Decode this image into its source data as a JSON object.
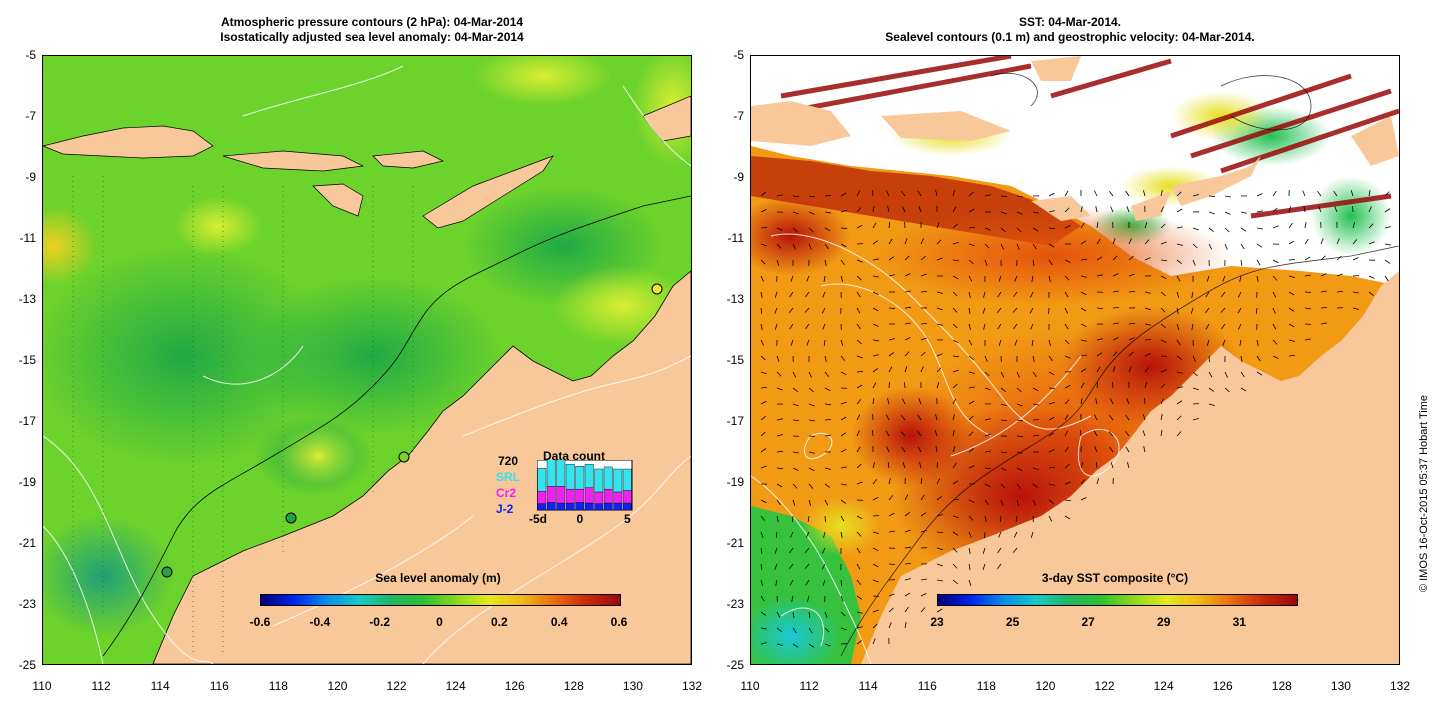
{
  "left_panel": {
    "title_line1": "Atmospheric pressure contours (2 hPa): 04-Mar-2014",
    "title_line2": "Isostatically adjusted sea level anomaly: 04-Mar-2014",
    "colorbar": {
      "title": "Sea level anomaly (m)",
      "ticks": [
        "-0.6",
        "-0.4",
        "-0.2",
        "0",
        "0.2",
        "0.4",
        "0.6"
      ],
      "range": [
        -0.6,
        0.6
      ]
    },
    "data_count": {
      "title": "Data count",
      "max_label": "720",
      "series": [
        "SRL",
        "Cr2",
        "J-2"
      ],
      "series_colors": [
        "#35e2ee",
        "#ee22ee",
        "#1122ee"
      ],
      "xticks": [
        "-5d",
        "0",
        "5"
      ],
      "day_index": [
        -5,
        -4,
        -3,
        -2,
        -1,
        0,
        1,
        2,
        3,
        4
      ],
      "srl_counts": [
        330,
        420,
        390,
        360,
        330,
        340,
        330,
        320,
        330,
        310
      ],
      "cr2_counts": [
        180,
        230,
        240,
        200,
        190,
        220,
        170,
        200,
        160,
        180
      ],
      "j2_counts": [
        90,
        110,
        100,
        100,
        110,
        100,
        90,
        100,
        100,
        100
      ]
    }
  },
  "right_panel": {
    "title_line1": "SST: 04-Mar-2014.",
    "title_line2": "Sealevel contours (0.1 m) and geostrophic velocity: 04-Mar-2014.",
    "colorbar": {
      "title": "3-day SST composite (°C)",
      "ticks": [
        "23",
        "25",
        "27",
        "29",
        "31"
      ],
      "range": [
        23,
        32.5
      ]
    }
  },
  "axes": {
    "lat_ticks": [
      "-5",
      "-7",
      "-9",
      "-11",
      "-13",
      "-15",
      "-17",
      "-19",
      "-21",
      "-23",
      "-25"
    ],
    "lon_ticks": [
      "110",
      "112",
      "114",
      "116",
      "118",
      "120",
      "122",
      "124",
      "126",
      "128",
      "130",
      "132"
    ]
  },
  "credit": "© IMOS 16-Oct-2015 05:37 Hobart Time",
  "colors": {
    "land": "#f8c89a",
    "sla_zero": "#31c231",
    "sst_warm": "#c81e0a",
    "sst_orange": "#f07a12"
  }
}
